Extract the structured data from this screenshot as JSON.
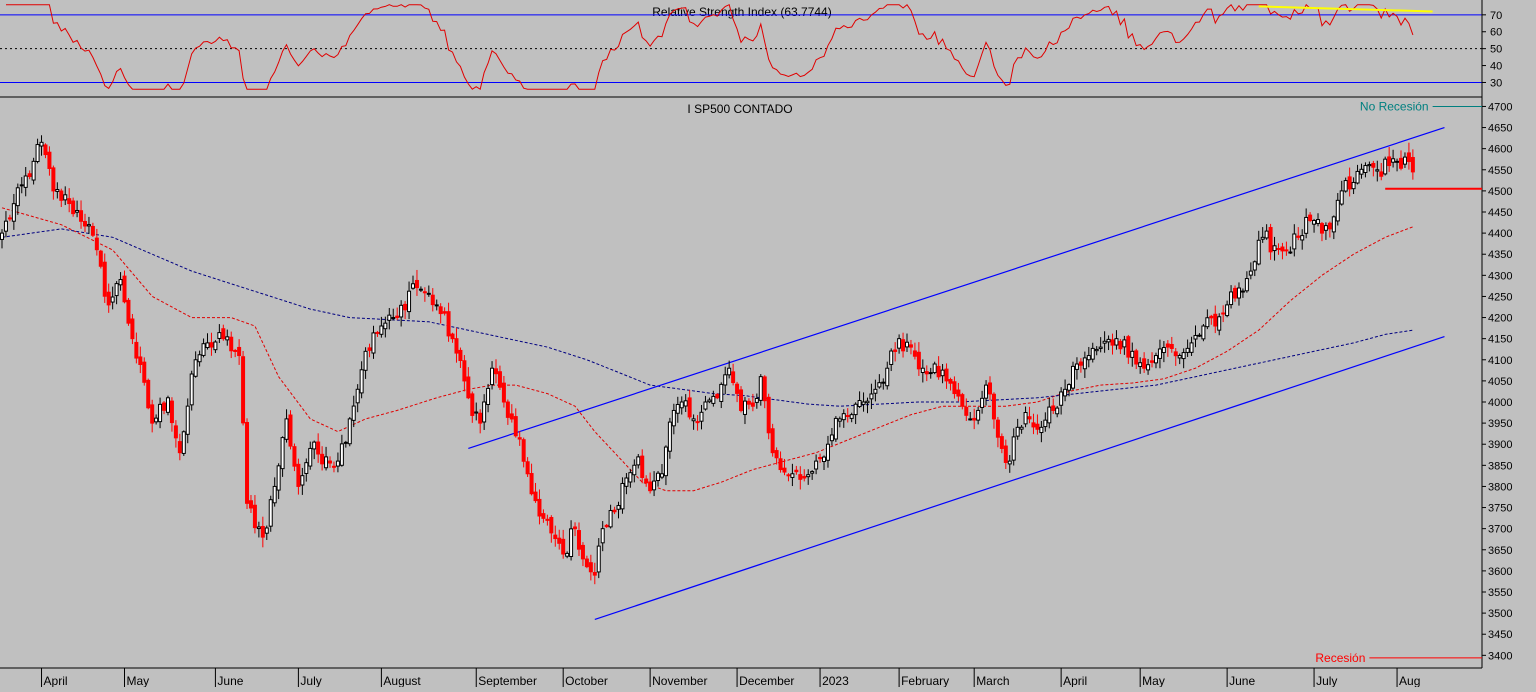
{
  "rsi_panel": {
    "title": "Relative Strength Index (63.7744)",
    "ticks": [
      30,
      40,
      50,
      60,
      70
    ],
    "ylim": [
      22,
      77
    ],
    "upper_band": 70,
    "middle_band": 50,
    "lower_band": 30,
    "colors": {
      "line": "#e00000",
      "bands": "#0000ff",
      "mid": "#000000",
      "trend": "#ffff00"
    },
    "rsi_trend": {
      "start_index": 318,
      "end_index": 362,
      "start_value": 75,
      "end_value": 72
    }
  },
  "price_panel": {
    "title": "I SP500 CONTADO",
    "ylim": [
      3370,
      4720
    ],
    "ticks": [
      3400,
      3450,
      3500,
      3550,
      3600,
      3650,
      3700,
      3750,
      3800,
      3850,
      3900,
      3950,
      4000,
      4050,
      4100,
      4150,
      4200,
      4250,
      4300,
      4350,
      4400,
      4450,
      4500,
      4550,
      4600,
      4650,
      4700
    ],
    "annotations": [
      {
        "label": "No Recesión",
        "value": 4700,
        "color": "#008080",
        "start_index": 362
      },
      {
        "label": "Recesión",
        "value": 3394,
        "color": "#ff0000",
        "start_index": 346
      },
      {
        "label": "",
        "value": 4505,
        "color": "#ff0000",
        "start_index": 350
      }
    ],
    "channel_lines": [
      {
        "name": "upper",
        "start": [
          118,
          3890
        ],
        "end": [
          365,
          4650
        ],
        "color": "#0000ff"
      },
      {
        "name": "lower",
        "start": [
          150,
          3485
        ],
        "end": [
          365,
          4155
        ],
        "color": "#0000ff"
      }
    ],
    "colors": {
      "up": "#000000",
      "down": "#ff0000",
      "ma_fast": "#e00000",
      "ma_slow": "#000080"
    }
  },
  "x_axis": {
    "months": [
      {
        "label": "April",
        "index": 10
      },
      {
        "label": "May",
        "index": 31
      },
      {
        "label": "June",
        "index": 54
      },
      {
        "label": "July",
        "index": 75
      },
      {
        "label": "August",
        "index": 96
      },
      {
        "label": "September",
        "index": 120
      },
      {
        "label": "October",
        "index": 142
      },
      {
        "label": "November",
        "index": 164
      },
      {
        "label": "December",
        "index": 186
      },
      {
        "label": "2023",
        "index": 207
      },
      {
        "label": "February",
        "index": 227
      },
      {
        "label": "March",
        "index": 246
      },
      {
        "label": "April",
        "index": 268
      },
      {
        "label": "May",
        "index": 288
      },
      {
        "label": "June",
        "index": 310
      },
      {
        "label": "July",
        "index": 332
      },
      {
        "label": "Aug",
        "index": 353
      }
    ]
  },
  "chart_data": {
    "type": "candlestick",
    "x_count": 375,
    "anchors": [
      [
        0,
        4400
      ],
      [
        8,
        4570
      ],
      [
        10,
        4615
      ],
      [
        13,
        4500
      ],
      [
        17,
        4470
      ],
      [
        22,
        4420
      ],
      [
        27,
        4230
      ],
      [
        30,
        4290
      ],
      [
        33,
        4150
      ],
      [
        38,
        3950
      ],
      [
        42,
        4010
      ],
      [
        45,
        3880
      ],
      [
        49,
        4100
      ],
      [
        52,
        4140
      ],
      [
        56,
        4150
      ],
      [
        60,
        4110
      ],
      [
        62,
        3760
      ],
      [
        66,
        3680
      ],
      [
        69,
        3800
      ],
      [
        72,
        3960
      ],
      [
        75,
        3800
      ],
      [
        78,
        3890
      ],
      [
        82,
        3870
      ],
      [
        85,
        3860
      ],
      [
        88,
        3960
      ],
      [
        92,
        4120
      ],
      [
        96,
        4180
      ],
      [
        100,
        4200
      ],
      [
        104,
        4280
      ],
      [
        107,
        4260
      ],
      [
        110,
        4230
      ],
      [
        114,
        4150
      ],
      [
        118,
        4010
      ],
      [
        121,
        3950
      ],
      [
        124,
        4080
      ],
      [
        127,
        4000
      ],
      [
        130,
        3920
      ],
      [
        133,
        3830
      ],
      [
        136,
        3730
      ],
      [
        139,
        3690
      ],
      [
        142,
        3640
      ],
      [
        145,
        3700
      ],
      [
        148,
        3610
      ],
      [
        150,
        3590
      ],
      [
        152,
        3700
      ],
      [
        155,
        3740
      ],
      [
        158,
        3820
      ],
      [
        161,
        3870
      ],
      [
        164,
        3790
      ],
      [
        167,
        3830
      ],
      [
        170,
        3980
      ],
      [
        172,
        4000
      ],
      [
        175,
        3960
      ],
      [
        178,
        4000
      ],
      [
        181,
        4010
      ],
      [
        184,
        4080
      ],
      [
        187,
        3980
      ],
      [
        190,
        3990
      ],
      [
        192,
        4060
      ],
      [
        195,
        3880
      ],
      [
        197,
        3840
      ],
      [
        200,
        3830
      ],
      [
        203,
        3820
      ],
      [
        206,
        3860
      ],
      [
        209,
        3900
      ],
      [
        212,
        3960
      ],
      [
        215,
        3970
      ],
      [
        218,
        4000
      ],
      [
        221,
        4030
      ],
      [
        224,
        4080
      ],
      [
        227,
        4150
      ],
      [
        230,
        4130
      ],
      [
        233,
        4080
      ],
      [
        236,
        4090
      ],
      [
        239,
        4050
      ],
      [
        241,
        4020
      ],
      [
        243,
        3990
      ],
      [
        245,
        3960
      ],
      [
        247,
        3980
      ],
      [
        249,
        4040
      ],
      [
        251,
        3960
      ],
      [
        253,
        3890
      ],
      [
        255,
        3860
      ],
      [
        257,
        3940
      ],
      [
        260,
        3960
      ],
      [
        263,
        3940
      ],
      [
        266,
        3980
      ],
      [
        269,
        4030
      ],
      [
        272,
        4090
      ],
      [
        275,
        4110
      ],
      [
        278,
        4130
      ],
      [
        282,
        4150
      ],
      [
        286,
        4120
      ],
      [
        289,
        4080
      ],
      [
        292,
        4110
      ],
      [
        295,
        4130
      ],
      [
        298,
        4110
      ],
      [
        301,
        4140
      ],
      [
        304,
        4180
      ],
      [
        307,
        4180
      ],
      [
        310,
        4230
      ],
      [
        313,
        4270
      ],
      [
        316,
        4310
      ],
      [
        319,
        4390
      ],
      [
        322,
        4370
      ],
      [
        325,
        4360
      ],
      [
        328,
        4390
      ],
      [
        331,
        4430
      ],
      [
        334,
        4400
      ],
      [
        336,
        4410
      ],
      [
        339,
        4500
      ],
      [
        342,
        4520
      ],
      [
        345,
        4560
      ],
      [
        348,
        4550
      ],
      [
        351,
        4560
      ],
      [
        353,
        4570
      ],
      [
        355,
        4580
      ],
      [
        357,
        4545
      ]
    ],
    "overlay_series": [
      {
        "name": "",
        "color": "#e00000",
        "points": [
          [
            0,
            4460
          ],
          [
            15,
            4420
          ],
          [
            28,
            4360
          ],
          [
            38,
            4250
          ],
          [
            48,
            4200
          ],
          [
            58,
            4200
          ],
          [
            64,
            4180
          ],
          [
            70,
            4060
          ],
          [
            78,
            3960
          ],
          [
            85,
            3930
          ],
          [
            92,
            3960
          ],
          [
            100,
            3980
          ],
          [
            110,
            4010
          ],
          [
            118,
            4030
          ],
          [
            124,
            4040
          ],
          [
            130,
            4040
          ],
          [
            138,
            4020
          ],
          [
            145,
            3990
          ],
          [
            150,
            3930
          ],
          [
            156,
            3870
          ],
          [
            162,
            3810
          ],
          [
            168,
            3790
          ],
          [
            175,
            3790
          ],
          [
            182,
            3810
          ],
          [
            190,
            3840
          ],
          [
            198,
            3860
          ],
          [
            206,
            3880
          ],
          [
            214,
            3910
          ],
          [
            222,
            3940
          ],
          [
            230,
            3970
          ],
          [
            238,
            3990
          ],
          [
            246,
            3990
          ],
          [
            254,
            3990
          ],
          [
            262,
            4000
          ],
          [
            270,
            4025
          ],
          [
            278,
            4040
          ],
          [
            286,
            4045
          ],
          [
            294,
            4055
          ],
          [
            302,
            4080
          ],
          [
            310,
            4120
          ],
          [
            318,
            4170
          ],
          [
            326,
            4240
          ],
          [
            334,
            4300
          ],
          [
            342,
            4350
          ],
          [
            350,
            4390
          ],
          [
            357,
            4415
          ]
        ]
      },
      {
        "name": "",
        "color": "#000080",
        "points": [
          [
            0,
            4390
          ],
          [
            15,
            4410
          ],
          [
            28,
            4390
          ],
          [
            38,
            4350
          ],
          [
            48,
            4310
          ],
          [
            58,
            4280
          ],
          [
            68,
            4250
          ],
          [
            78,
            4220
          ],
          [
            88,
            4200
          ],
          [
            98,
            4195
          ],
          [
            108,
            4190
          ],
          [
            118,
            4170
          ],
          [
            128,
            4150
          ],
          [
            138,
            4130
          ],
          [
            148,
            4100
          ],
          [
            156,
            4070
          ],
          [
            164,
            4040
          ],
          [
            172,
            4030
          ],
          [
            180,
            4020
          ],
          [
            188,
            4015
          ],
          [
            196,
            4005
          ],
          [
            204,
            3995
          ],
          [
            212,
            3990
          ],
          [
            222,
            3995
          ],
          [
            232,
            4000
          ],
          [
            242,
            4000
          ],
          [
            252,
            4005
          ],
          [
            262,
            4010
          ],
          [
            272,
            4020
          ],
          [
            282,
            4030
          ],
          [
            292,
            4040
          ],
          [
            302,
            4060
          ],
          [
            312,
            4080
          ],
          [
            322,
            4100
          ],
          [
            332,
            4120
          ],
          [
            342,
            4140
          ],
          [
            350,
            4160
          ],
          [
            357,
            4170
          ]
        ]
      }
    ]
  }
}
